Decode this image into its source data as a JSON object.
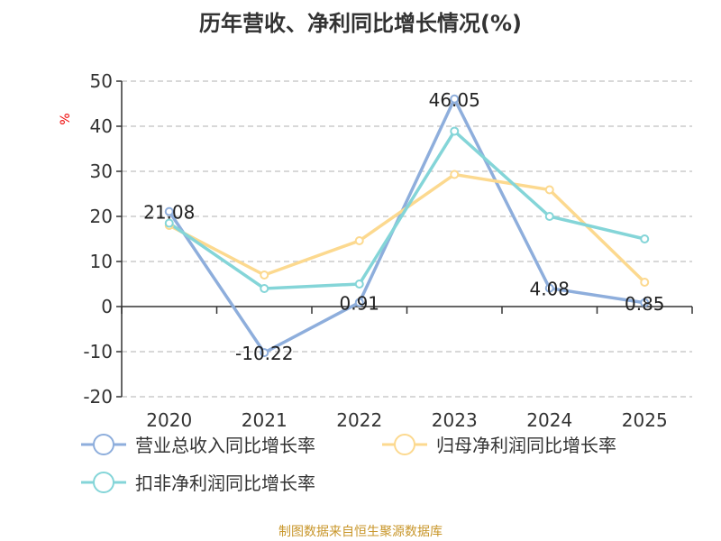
{
  "chart_data": {
    "type": "line",
    "title": "历年营收、净利同比增长情况(%)",
    "ylabel": "%",
    "categories": [
      "2020",
      "2021",
      "2022",
      "2023",
      "2024",
      "2025"
    ],
    "ylim": [
      -20,
      50
    ],
    "yticks": [
      50,
      40,
      30,
      20,
      10,
      0,
      -10,
      -20
    ],
    "grid": true,
    "legend_position": "bottom",
    "series": [
      {
        "name": "营业总收入同比增长率",
        "color": "#8eaedc",
        "values": [
          21.08,
          -10.22,
          0.91,
          46.05,
          4.08,
          0.85
        ],
        "labels": [
          "21.08",
          "-10.22",
          "0.91",
          "46.05",
          "4.08",
          "0.85"
        ]
      },
      {
        "name": "归母净利润同比增长率",
        "color": "#fcd98f",
        "values": [
          18.0,
          7.0,
          14.6,
          29.3,
          25.9,
          5.4
        ]
      },
      {
        "name": "扣非净利润同比增长率",
        "color": "#84d5d8",
        "values": [
          18.5,
          4.0,
          5.0,
          38.9,
          20.0,
          15.0
        ]
      }
    ]
  },
  "footer": "制图数据来自恒生聚源数据库"
}
